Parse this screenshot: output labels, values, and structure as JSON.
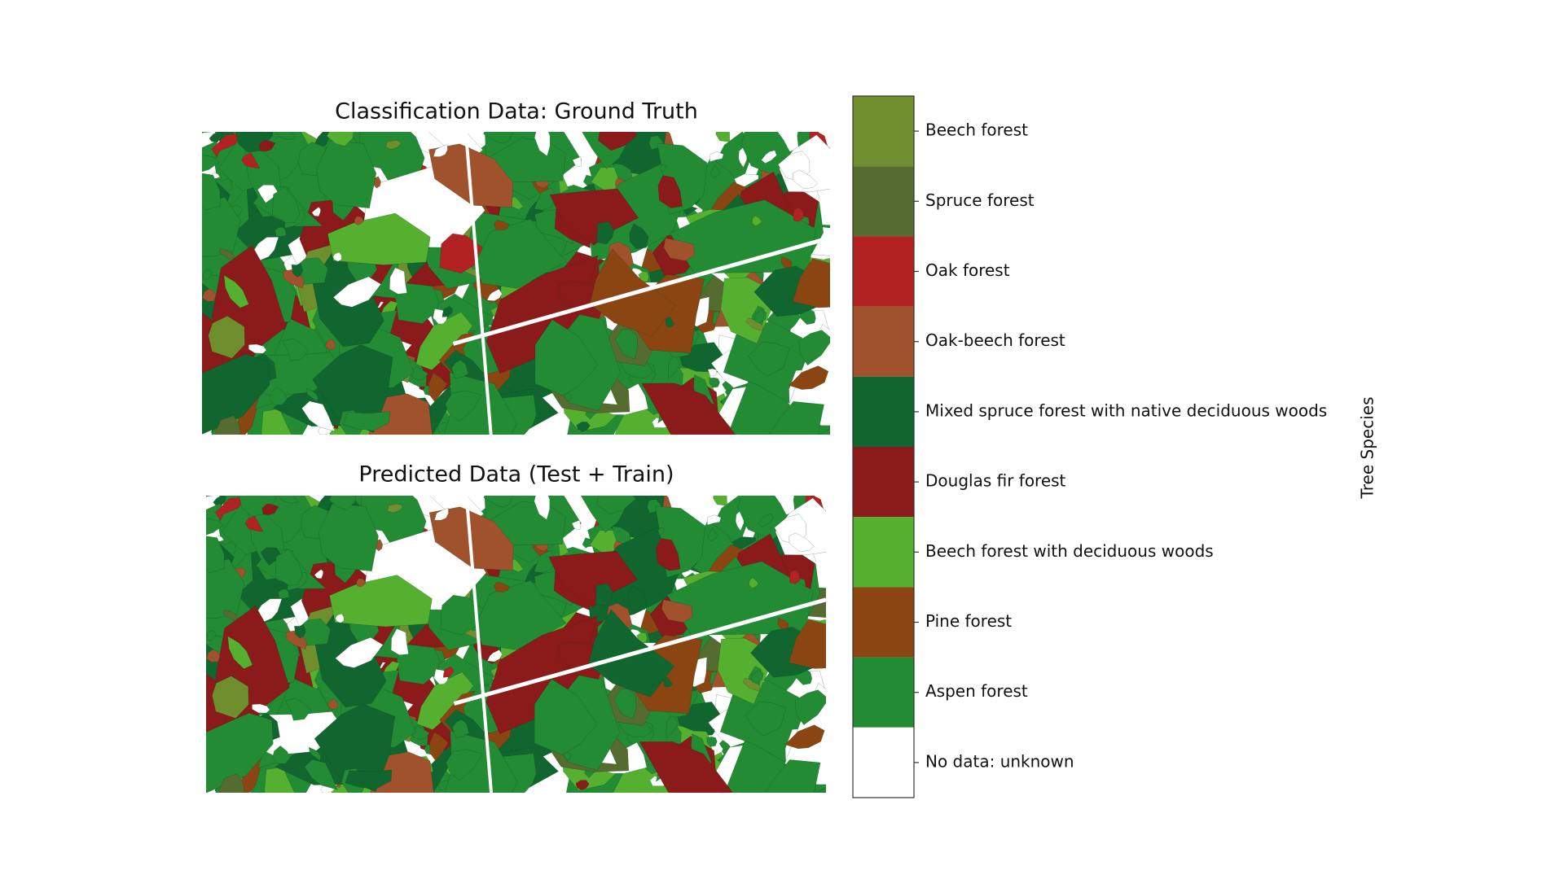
{
  "maps": [
    {
      "title": "Classification Data: Ground Truth"
    },
    {
      "title": "Predicted Data (Test + Train)"
    }
  ],
  "legend": {
    "title": "Tree Species",
    "classes": [
      {
        "label": "Beech forest",
        "color": "#6f8f2f"
      },
      {
        "label": "Spruce forest",
        "color": "#556b2f"
      },
      {
        "label": "Oak forest",
        "color": "#b22222"
      },
      {
        "label": "Oak-beech forest",
        "color": "#a0522d"
      },
      {
        "label": "Mixed spruce forest with native deciduous woods",
        "color": "#11662f"
      },
      {
        "label": "Douglas fir forest",
        "color": "#8b1a1a"
      },
      {
        "label": "Beech forest with deciduous woods",
        "color": "#55b030"
      },
      {
        "label": "Pine forest",
        "color": "#8b4513"
      },
      {
        "label": "Aspen forest",
        "color": "#228b34"
      },
      {
        "label": "No data: unknown",
        "color": "#ffffff"
      }
    ]
  }
}
